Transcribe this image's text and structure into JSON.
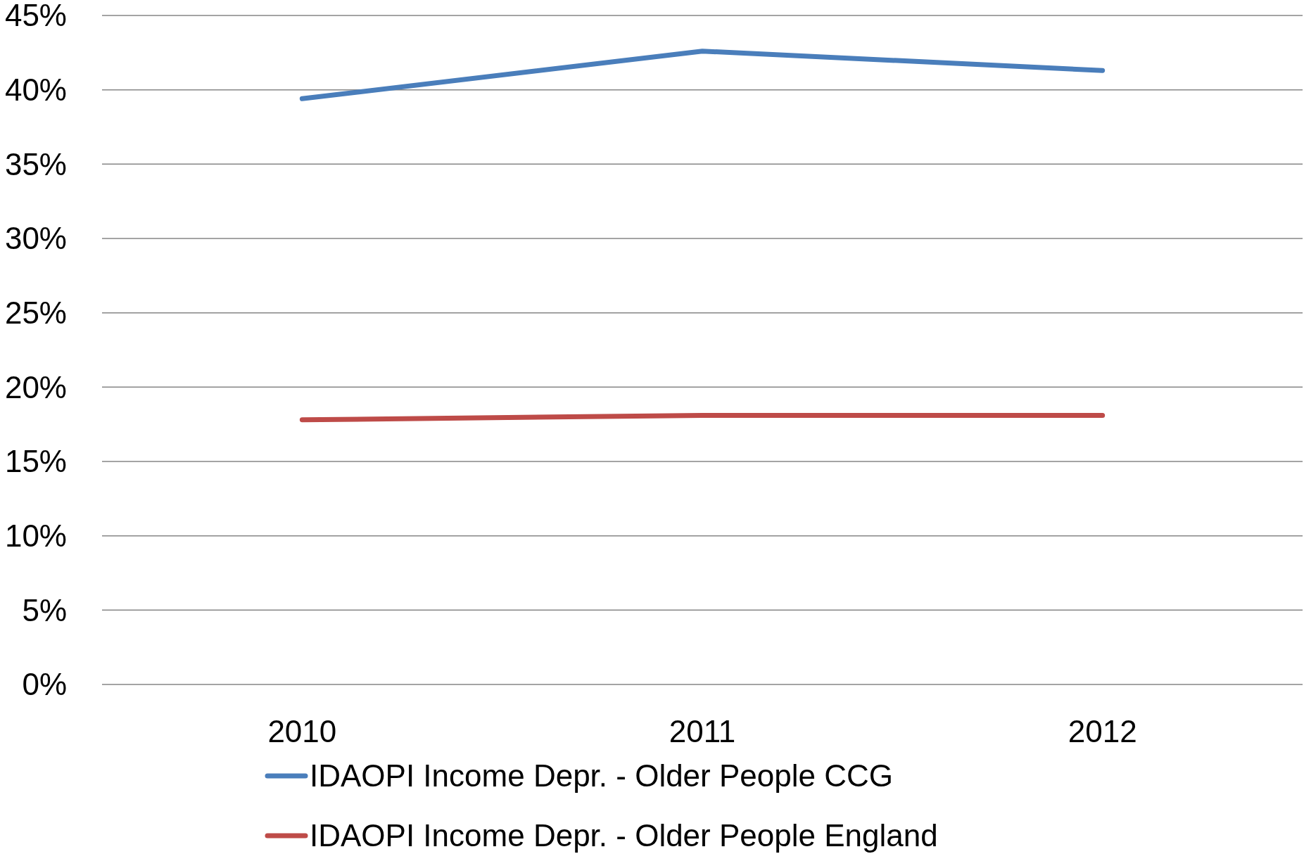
{
  "chart_data": {
    "type": "line",
    "categories": [
      "2010",
      "2011",
      "2012"
    ],
    "series": [
      {
        "name": "IDAOPI Income Depr. - Older People CCG",
        "color": "#4a7ebb",
        "values": [
          39.4,
          42.6,
          41.3
        ]
      },
      {
        "name": "IDAOPI Income Depr. - Older People England",
        "color": "#be4b48",
        "values": [
          17.8,
          18.1,
          18.1
        ]
      }
    ],
    "ylim": [
      0,
      45
    ],
    "yticks": [
      {
        "value": 0,
        "label": "0%"
      },
      {
        "value": 5,
        "label": "5%"
      },
      {
        "value": 10,
        "label": "10%"
      },
      {
        "value": 15,
        "label": "15%"
      },
      {
        "value": 20,
        "label": "20%"
      },
      {
        "value": 25,
        "label": "25%"
      },
      {
        "value": 30,
        "label": "30%"
      },
      {
        "value": 35,
        "label": "35%"
      },
      {
        "value": 40,
        "label": "40%"
      },
      {
        "value": 45,
        "label": "45%"
      }
    ],
    "grid": "y",
    "legend": "bottom",
    "marker": "none",
    "line_style": "solid"
  }
}
